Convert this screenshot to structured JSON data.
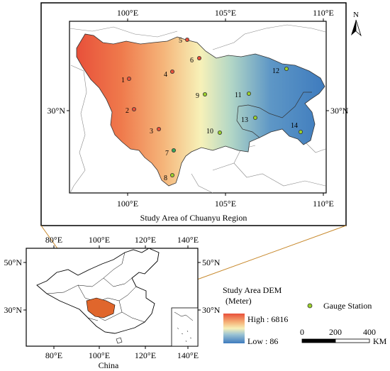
{
  "main_map": {
    "top_ticks": [
      "100°E",
      "105°E",
      "110°E"
    ],
    "bottom_ticks": [
      "100°E",
      "105°E",
      "110°E"
    ],
    "left_lat": "30°N",
    "right_lat": "30°N",
    "north_label": "N",
    "caption": "Study Area of Chuanyu Region"
  },
  "stations": [
    {
      "id": "1"
    },
    {
      "id": "2"
    },
    {
      "id": "3"
    },
    {
      "id": "4"
    },
    {
      "id": "5"
    },
    {
      "id": "6"
    },
    {
      "id": "7"
    },
    {
      "id": "8"
    },
    {
      "id": "9"
    },
    {
      "id": "10"
    },
    {
      "id": "11"
    },
    {
      "id": "12"
    },
    {
      "id": "13"
    },
    {
      "id": "14"
    }
  ],
  "inset_map": {
    "top_ticks": [
      "80°E",
      "100°E",
      "120°E",
      "140°E"
    ],
    "bottom_ticks": [
      "80°E",
      "100°E",
      "120°E",
      "140°E"
    ],
    "left_lats": [
      "50°N",
      "30°N"
    ],
    "right_lats": [
      "50°N",
      "30°N"
    ],
    "caption": "China"
  },
  "legend": {
    "title_line1": "Study Area DEM",
    "title_line2": "(Meter)",
    "high": "High : 6816",
    "low": "Low : 86",
    "gauge_label": "Gauge Station",
    "colors": {
      "high": "#e8503a",
      "mid": "#f7f1b8",
      "low": "#3e7bbe",
      "gauge": "#9bd12c"
    },
    "scale": {
      "ticks": [
        "0",
        "200",
        "400"
      ],
      "unit": "KM"
    }
  }
}
